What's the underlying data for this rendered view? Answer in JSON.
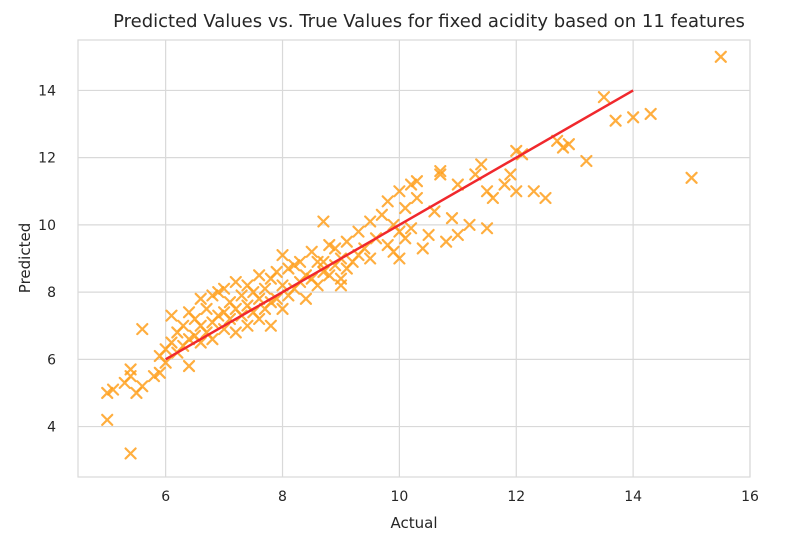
{
  "chart_data": {
    "type": "scatter",
    "title": "Predicted Values vs. True Values for fixed acidity based on 11 features",
    "xlabel": "Actual",
    "ylabel": "Predicted",
    "xlim": [
      4.5,
      16.0
    ],
    "ylim": [
      2.5,
      15.5
    ],
    "xticks": [
      6,
      8,
      10,
      12,
      14,
      16
    ],
    "yticks": [
      4,
      6,
      8,
      10,
      12,
      14
    ],
    "grid": true,
    "colors": {
      "points": "#ffa01e",
      "line": "#f0282d",
      "grid": "#d9d9d9"
    },
    "series": [
      {
        "kind": "scatter",
        "marker": "x",
        "x": [
          5.0,
          5.0,
          5.1,
          5.3,
          5.4,
          5.4,
          5.5,
          5.6,
          5.6,
          5.8,
          5.9,
          5.9,
          6.0,
          6.0,
          6.1,
          6.1,
          6.2,
          6.2,
          6.3,
          6.3,
          6.4,
          6.4,
          6.4,
          6.5,
          6.5,
          6.6,
          6.6,
          6.6,
          6.7,
          6.7,
          6.8,
          6.8,
          6.8,
          6.9,
          6.9,
          7.0,
          7.0,
          7.0,
          7.1,
          7.1,
          7.2,
          7.2,
          7.2,
          7.3,
          7.3,
          7.4,
          7.4,
          7.4,
          7.5,
          7.5,
          7.6,
          7.6,
          7.6,
          7.7,
          7.7,
          7.8,
          7.8,
          7.8,
          7.9,
          7.9,
          8.0,
          8.0,
          8.0,
          8.1,
          8.1,
          8.2,
          8.2,
          8.3,
          8.3,
          8.4,
          8.4,
          8.5,
          8.5,
          8.6,
          8.6,
          8.7,
          8.7,
          8.8,
          8.8,
          8.9,
          8.9,
          9.0,
          9.0,
          9.1,
          9.1,
          9.2,
          9.3,
          9.3,
          9.4,
          9.5,
          9.5,
          9.6,
          9.7,
          9.8,
          9.8,
          9.9,
          9.9,
          10.0,
          10.0,
          10.0,
          10.1,
          10.1,
          10.2,
          10.2,
          10.3,
          10.4,
          10.5,
          10.6,
          10.7,
          10.8,
          10.9,
          11.0,
          11.0,
          11.2,
          11.3,
          11.4,
          11.5,
          11.5,
          11.6,
          11.8,
          11.9,
          12.0,
          12.0,
          12.1,
          12.3,
          12.5,
          12.7,
          12.8,
          12.9,
          13.2,
          13.5,
          13.7,
          14.0,
          14.3,
          15.0,
          15.5,
          5.4,
          10.3,
          10.7,
          9.0,
          8.7
        ],
        "y": [
          4.2,
          5.0,
          5.1,
          5.3,
          5.7,
          3.2,
          5.0,
          5.2,
          6.9,
          5.5,
          5.6,
          6.1,
          5.9,
          6.3,
          6.5,
          7.3,
          6.2,
          6.8,
          6.4,
          7.0,
          5.8,
          6.6,
          7.4,
          6.7,
          7.2,
          6.5,
          7.0,
          7.8,
          6.8,
          7.5,
          6.6,
          7.1,
          7.9,
          7.3,
          8.0,
          6.9,
          7.4,
          8.1,
          7.2,
          7.7,
          6.8,
          7.5,
          8.3,
          7.3,
          7.9,
          7.0,
          7.6,
          8.2,
          7.4,
          8.0,
          7.2,
          7.8,
          8.5,
          7.5,
          8.1,
          7.0,
          7.7,
          8.4,
          7.8,
          8.6,
          7.5,
          8.2,
          9.1,
          7.9,
          8.7,
          8.1,
          8.8,
          8.3,
          8.9,
          7.8,
          8.5,
          8.4,
          9.2,
          8.2,
          8.9,
          8.6,
          10.1,
          8.5,
          9.4,
          8.8,
          9.3,
          8.4,
          9.0,
          8.7,
          9.5,
          8.9,
          9.1,
          9.8,
          9.3,
          9.0,
          10.1,
          9.6,
          10.3,
          9.4,
          10.7,
          9.2,
          10.0,
          9.0,
          9.8,
          11.0,
          9.6,
          10.5,
          9.9,
          11.2,
          10.8,
          9.3,
          9.7,
          10.4,
          11.5,
          9.5,
          10.2,
          9.7,
          11.2,
          10.0,
          11.5,
          11.8,
          9.9,
          11.0,
          10.8,
          11.2,
          11.5,
          11.0,
          12.2,
          12.1,
          11.0,
          10.8,
          12.5,
          12.3,
          12.4,
          11.9,
          13.8,
          13.1,
          13.2,
          13.3,
          11.4,
          15.0,
          5.5,
          11.3,
          11.6,
          8.2,
          8.9
        ]
      },
      {
        "kind": "line",
        "x": [
          6,
          14
        ],
        "y": [
          6,
          14
        ]
      }
    ]
  }
}
